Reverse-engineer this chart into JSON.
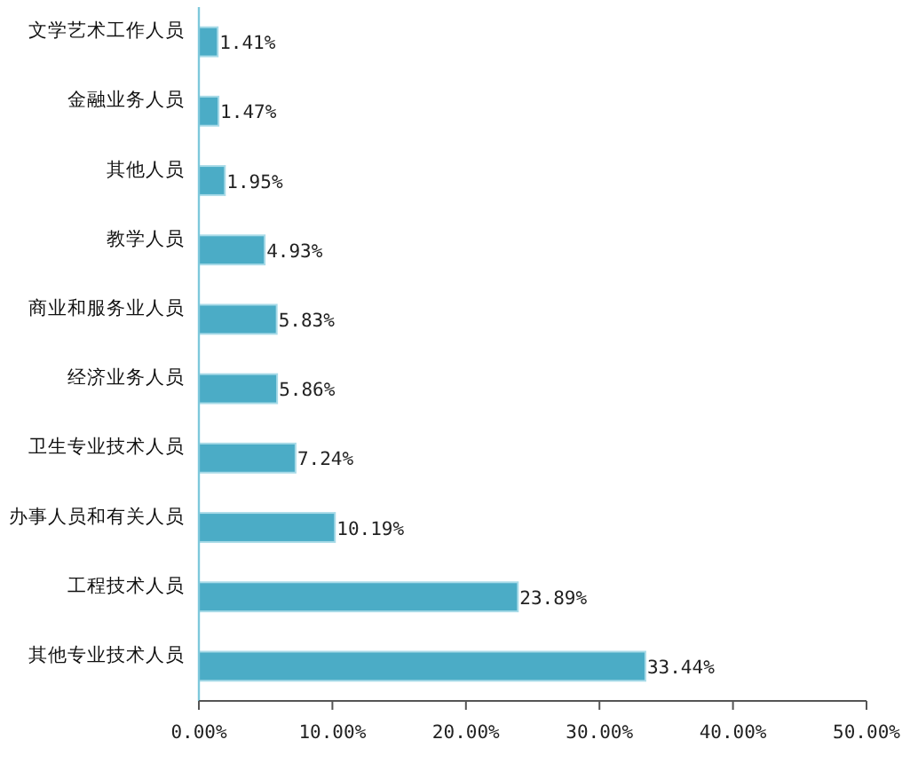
{
  "chart_data": {
    "type": "bar",
    "orientation": "horizontal",
    "categories": [
      "文学艺术工作人员",
      "金融业务人员",
      "其他人员",
      "教学人员",
      "商业和服务业人员",
      "经济业务人员",
      "卫生专业技术人员",
      "办事人员和有关人员",
      "工程技术人员",
      "其他专业技术人员"
    ],
    "values": [
      1.41,
      1.47,
      1.95,
      4.93,
      5.83,
      5.86,
      7.24,
      10.19,
      23.89,
      33.44
    ],
    "value_labels": [
      "1.41%",
      "1.47%",
      "1.95%",
      "4.93%",
      "5.83%",
      "5.86%",
      "7.24%",
      "10.19%",
      "23.89%",
      "33.44%"
    ],
    "color": "#4bacc6",
    "xlim": [
      0,
      50
    ],
    "xticks": [
      {
        "value": 0,
        "label": "0.00%"
      },
      {
        "value": 10,
        "label": "10.00%"
      },
      {
        "value": 20,
        "label": "20.00%"
      },
      {
        "value": 30,
        "label": "30.00%"
      },
      {
        "value": 40,
        "label": "40.00%"
      },
      {
        "value": 50,
        "label": "50.00%"
      }
    ]
  }
}
